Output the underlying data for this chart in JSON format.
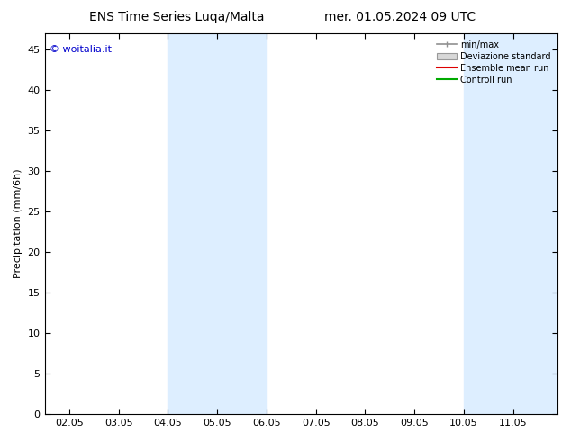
{
  "title_left": "ENS Time Series Luqa/Malta",
  "title_right": "mer. 01.05.2024 09 UTC",
  "ylabel": "Precipitation (mm/6h)",
  "ylim": [
    0,
    47
  ],
  "yticks": [
    0,
    5,
    10,
    15,
    20,
    25,
    30,
    35,
    40,
    45
  ],
  "xtick_labels": [
    "02.05",
    "03.05",
    "04.05",
    "05.05",
    "06.05",
    "07.05",
    "08.05",
    "09.05",
    "10.05",
    "11.05"
  ],
  "xtick_positions": [
    0,
    1,
    2,
    3,
    4,
    5,
    6,
    7,
    8,
    9
  ],
  "xlim": [
    -0.5,
    9.9
  ],
  "shaded_bands": [
    [
      2.0,
      3.0
    ],
    [
      3.0,
      4.0
    ],
    [
      8.0,
      9.0
    ],
    [
      9.0,
      9.9
    ]
  ],
  "shade_color": "#ddeeff",
  "legend_labels": [
    "min/max",
    "Deviazione standard",
    "Ensemble mean run",
    "Controll run"
  ],
  "legend_line_colors": [
    "#909090",
    "#c8c8c8",
    "#dd0000",
    "#00aa00"
  ],
  "watermark": "© woitalia.it",
  "watermark_color": "#0000cc",
  "background_color": "#ffffff",
  "title_fontsize": 10,
  "axis_fontsize": 8,
  "tick_fontsize": 8
}
